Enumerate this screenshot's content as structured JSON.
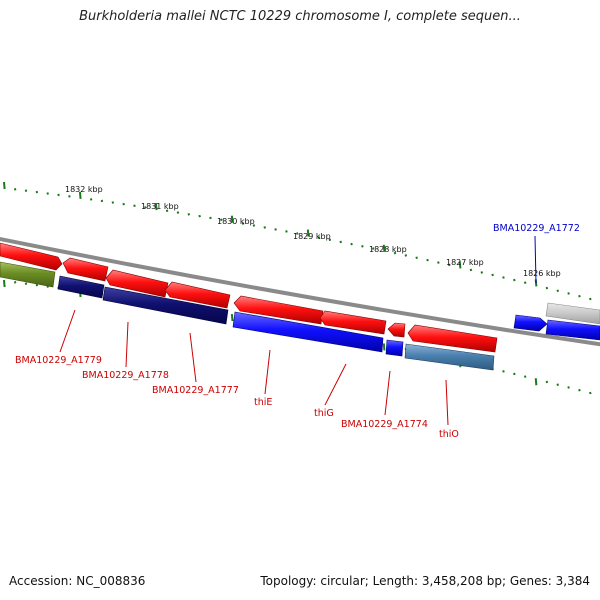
{
  "title": "Burkholderia mallei NCTC 10229 chromosome I, complete sequen...",
  "footer": {
    "accession": "Accession: NC_008836",
    "summary": "Topology: circular; Length: 3,458,208 bp; Genes: 3,384"
  },
  "scale_labels": [
    "1832 kbp",
    "1831 kbp",
    "1830 kbp",
    "1829 kbp",
    "1828 kbp",
    "1827 kbp",
    "1826 kbp"
  ],
  "gene_labels": {
    "a1779": "BMA10229_A1779",
    "a1778": "BMA10229_A1778",
    "a1777": "BMA10229_A1777",
    "thiE": "thiE",
    "thiG": "thiG",
    "a1774": "BMA10229_A1774",
    "thiO": "thiO",
    "a1772": "BMA10229_A1772"
  },
  "colors": {
    "forward_gene": "#ff0000",
    "reverse_gene": "#0000ff",
    "reverse_gene_dark": "#0a0a78",
    "reverse_gene_light": "#4a7fae",
    "other_gene": "#6b8e23",
    "grey_gene": "#bfbfbf",
    "tick": "#1a7a1a",
    "backbone": "#7a7a7a",
    "red_label": "#cc0000",
    "blue_label": "#0000cc"
  }
}
